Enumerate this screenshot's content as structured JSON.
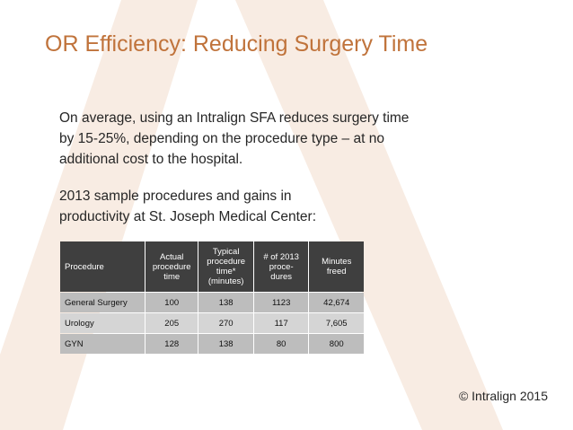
{
  "slide": {
    "title": "OR Efficiency: Reducing Surgery Time",
    "paragraph1_lines": [
      "On average, using an Intralign SFA reduces surgery time",
      "by 15-25%, depending on the procedure type – at no",
      "additional cost to the hospital."
    ],
    "paragraph2_lines": [
      "2013 sample procedures and gains in",
      "productivity at St. Joseph Medical Center:"
    ],
    "copyright": "© Intralign 2015",
    "accent_color": "#c0733b"
  },
  "table": {
    "headers": [
      [
        "Procedure"
      ],
      [
        "Actual",
        "procedure",
        "time"
      ],
      [
        "Typical",
        "procedure",
        "time*",
        "(minutes)"
      ],
      [
        "# of 2013",
        "proce-",
        "dures"
      ],
      [
        "Minutes",
        "freed"
      ]
    ],
    "rows": [
      [
        "General Surgery",
        "100",
        "138",
        "1123",
        "42,674"
      ],
      [
        "Urology",
        "205",
        "270",
        "117",
        "7,605"
      ],
      [
        "GYN",
        "128",
        "138",
        "80",
        "800"
      ]
    ]
  }
}
